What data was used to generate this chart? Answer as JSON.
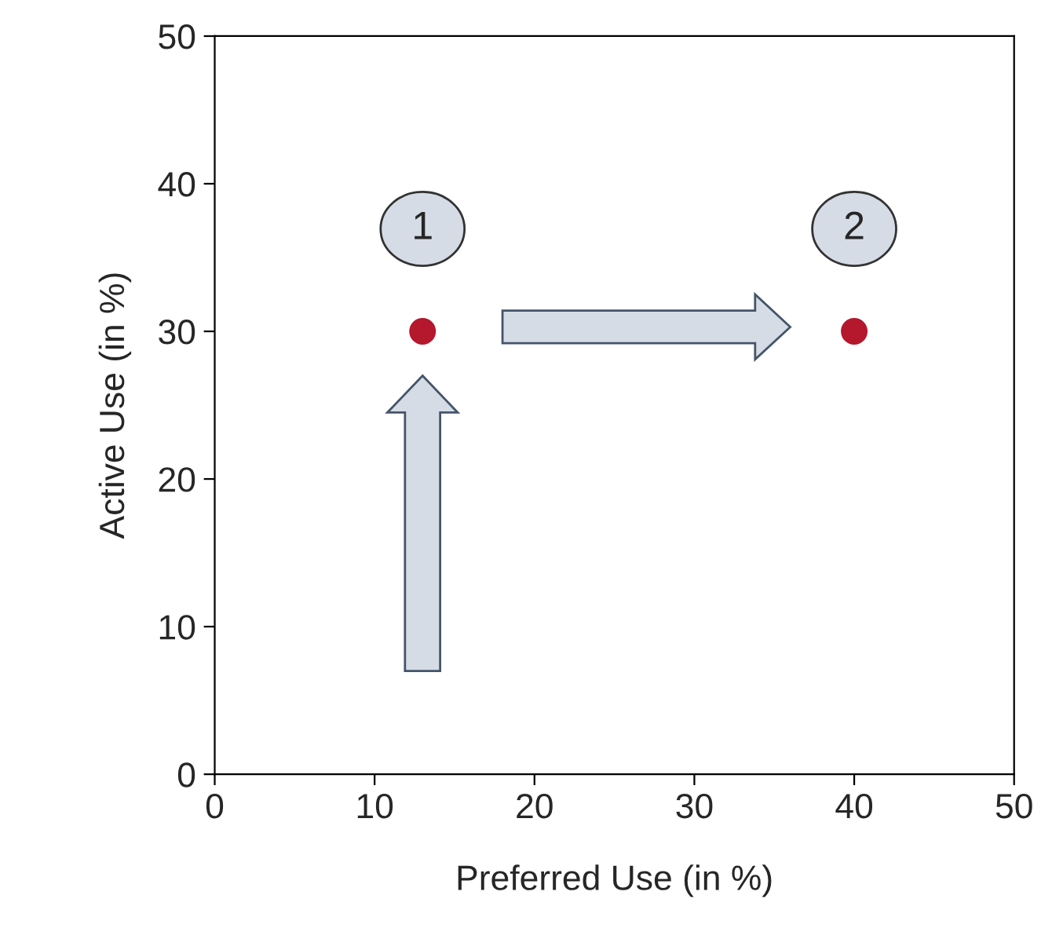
{
  "chart_data": {
    "type": "scatter",
    "xlabel": "Preferred Use (in %)",
    "ylabel": "Active Use (in %)",
    "x": [
      13,
      40
    ],
    "values": [
      30,
      30
    ],
    "color": "#b5172c",
    "marker": "circle",
    "xlim": [
      0,
      50
    ],
    "ylim": [
      0,
      50
    ],
    "xticks": [
      0,
      10,
      20,
      30,
      40,
      50
    ],
    "yticks": [
      0,
      10,
      20,
      30,
      40,
      50
    ],
    "grid": false,
    "legend": false,
    "annotations": [
      "1",
      "2"
    ]
  }
}
